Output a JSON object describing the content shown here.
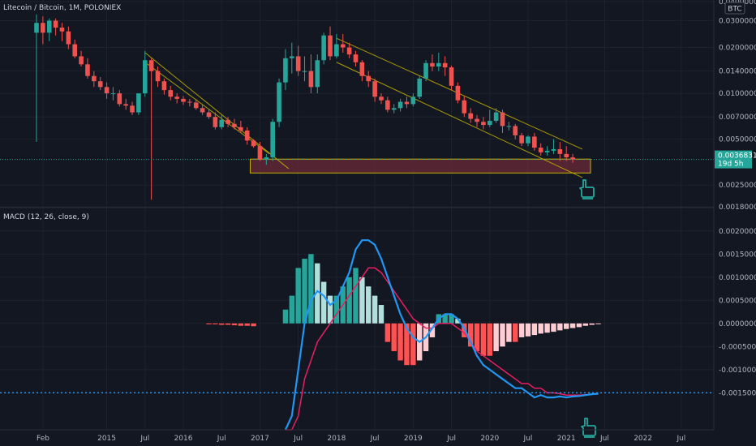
{
  "header": {
    "symbol_title": "Litecoin / Bitcoin, 1M, POLONIEX",
    "currency_badge": "BTC"
  },
  "price_axis": {
    "ticks": [
      "0.04000000",
      "0.03000000",
      "0.02000000",
      "0.01400000",
      "0.01000000",
      "0.00700000",
      "0.00500000",
      "0.00250000",
      "0.00180000"
    ],
    "last_price": "0.00368311",
    "countdown": "19d 5h"
  },
  "macd_panel": {
    "legend": "MACD (12, 26, close, 9)",
    "ticks": [
      "0.00200000",
      "0.00150000",
      "0.00100000",
      "0.00050000",
      "0.00000000",
      "-0.00050000",
      "-0.00100000",
      "-0.00150000"
    ]
  },
  "time_axis": {
    "labels": [
      "Feb",
      "2015",
      "Jul",
      "2016",
      "Jul",
      "2017",
      "Jul",
      "2018",
      "Jul",
      "2019",
      "Jul",
      "2020",
      "Jul",
      "2021",
      "Jul",
      "2022",
      "Jul"
    ]
  },
  "colors": {
    "background": "#131722",
    "bull": "#26a69a",
    "bear": "#ef5350",
    "macd_line": "#2196f3",
    "signal_line": "#e91e63",
    "hist_pos_strong": "#26a69a",
    "hist_pos_weak": "#b2dfdb",
    "hist_neg_strong": "#ff5252",
    "hist_neg_weak": "#ffcdd2",
    "channel": "#c8b400",
    "support_zone": "#6b2a3a",
    "annotation": "#26a69a"
  },
  "chart_data": [
    {
      "type": "candlestick",
      "title": "Litecoin / Bitcoin, 1M, POLONIEX",
      "y_scale": "log",
      "x": [
        "2014-02",
        "2014-03",
        "2014-04",
        "2014-05",
        "2014-06",
        "2014-07",
        "2014-08",
        "2014-09",
        "2014-10",
        "2014-11",
        "2014-12",
        "2015-01",
        "2015-02",
        "2015-03",
        "2015-04",
        "2015-05",
        "2015-06",
        "2015-07",
        "2015-08",
        "2015-09",
        "2015-10",
        "2015-11",
        "2015-12",
        "2016-01",
        "2016-02",
        "2016-03",
        "2016-04",
        "2016-05",
        "2016-06",
        "2016-07",
        "2016-08",
        "2016-09",
        "2016-10",
        "2016-11",
        "2016-12",
        "2017-01",
        "2017-02",
        "2017-03",
        "2017-04",
        "2017-05",
        "2017-06",
        "2017-07",
        "2017-08",
        "2017-09",
        "2017-10",
        "2017-11",
        "2017-12",
        "2018-01",
        "2018-02",
        "2018-03",
        "2018-04",
        "2018-05",
        "2018-06",
        "2018-07",
        "2018-08",
        "2018-09",
        "2018-10",
        "2018-11",
        "2018-12",
        "2019-01",
        "2019-02",
        "2019-03",
        "2019-04",
        "2019-05",
        "2019-06",
        "2019-07",
        "2019-08",
        "2019-09",
        "2019-10",
        "2019-11",
        "2019-12",
        "2020-01",
        "2020-02",
        "2020-03",
        "2020-04",
        "2020-05",
        "2020-06",
        "2020-07",
        "2020-08",
        "2020-09",
        "2020-10",
        "2020-11",
        "2020-12",
        "2021-01",
        "2021-02"
      ],
      "open": [
        0.025,
        0.029,
        0.025,
        0.03,
        0.027,
        0.0255,
        0.021,
        0.0175,
        0.0155,
        0.013,
        0.012,
        0.011,
        0.01,
        0.01,
        0.0085,
        0.0083,
        0.0075,
        0.01,
        0.0165,
        0.014,
        0.012,
        0.0105,
        0.0095,
        0.0092,
        0.0088,
        0.0087,
        0.008,
        0.0075,
        0.007,
        0.006,
        0.0067,
        0.0063,
        0.006,
        0.0057,
        0.0049,
        0.0045,
        0.0037,
        0.0038,
        0.0065,
        0.0118,
        0.017,
        0.0175,
        0.014,
        0.014,
        0.011,
        0.0165,
        0.024,
        0.0175,
        0.021,
        0.02,
        0.018,
        0.016,
        0.013,
        0.012,
        0.0095,
        0.009,
        0.0078,
        0.008,
        0.0088,
        0.0085,
        0.0095,
        0.0125,
        0.0158,
        0.015,
        0.0158,
        0.0148,
        0.0112,
        0.009,
        0.0074,
        0.0068,
        0.0065,
        0.0062,
        0.0066,
        0.0075,
        0.0061,
        0.0061,
        0.0053,
        0.0047,
        0.0052,
        0.0044,
        0.0041,
        0.0042,
        0.0043,
        0.004,
        0.0038
      ],
      "high": [
        0.033,
        0.032,
        0.031,
        0.031,
        0.029,
        0.0275,
        0.0225,
        0.019,
        0.017,
        0.014,
        0.0128,
        0.0118,
        0.011,
        0.0105,
        0.0092,
        0.0088,
        0.0098,
        0.019,
        0.017,
        0.015,
        0.0125,
        0.0112,
        0.01,
        0.0096,
        0.0092,
        0.0092,
        0.0084,
        0.0078,
        0.0075,
        0.0072,
        0.007,
        0.0068,
        0.0066,
        0.006,
        0.005,
        0.0048,
        0.004,
        0.0068,
        0.0125,
        0.0195,
        0.0215,
        0.0205,
        0.0175,
        0.018,
        0.018,
        0.025,
        0.0275,
        0.0245,
        0.0245,
        0.0215,
        0.019,
        0.0165,
        0.014,
        0.0125,
        0.01,
        0.0095,
        0.0085,
        0.0092,
        0.0095,
        0.01,
        0.013,
        0.0165,
        0.018,
        0.0185,
        0.0175,
        0.0152,
        0.0118,
        0.0096,
        0.008,
        0.0072,
        0.007,
        0.0078,
        0.008,
        0.0078,
        0.0065,
        0.0063,
        0.0055,
        0.0053,
        0.0055,
        0.0047,
        0.0045,
        0.005,
        0.0048,
        0.0045,
        0.004
      ],
      "low": [
        0.0048,
        0.021,
        0.022,
        0.024,
        0.022,
        0.0195,
        0.017,
        0.015,
        0.0125,
        0.011,
        0.0105,
        0.0092,
        0.009,
        0.0082,
        0.0078,
        0.0072,
        0.0072,
        0.0095,
        0.002,
        0.011,
        0.0098,
        0.009,
        0.0086,
        0.0084,
        0.0082,
        0.0078,
        0.0072,
        0.0068,
        0.0058,
        0.0058,
        0.006,
        0.0058,
        0.0055,
        0.0046,
        0.0044,
        0.0036,
        0.0034,
        0.0036,
        0.006,
        0.0105,
        0.0135,
        0.013,
        0.012,
        0.01,
        0.01,
        0.0155,
        0.0165,
        0.017,
        0.0185,
        0.017,
        0.015,
        0.012,
        0.011,
        0.0088,
        0.0085,
        0.0075,
        0.0074,
        0.0076,
        0.008,
        0.0082,
        0.0092,
        0.012,
        0.014,
        0.014,
        0.013,
        0.0105,
        0.0086,
        0.007,
        0.0064,
        0.006,
        0.0058,
        0.006,
        0.0064,
        0.0055,
        0.0057,
        0.005,
        0.0045,
        0.0045,
        0.0042,
        0.0039,
        0.0039,
        0.004,
        0.0036,
        0.0036,
        0.0035
      ],
      "close": [
        0.029,
        0.025,
        0.03,
        0.027,
        0.0255,
        0.021,
        0.0175,
        0.0155,
        0.013,
        0.012,
        0.011,
        0.01,
        0.01,
        0.0085,
        0.0083,
        0.0075,
        0.01,
        0.0165,
        0.014,
        0.012,
        0.0105,
        0.0095,
        0.0092,
        0.0088,
        0.0087,
        0.008,
        0.0075,
        0.007,
        0.006,
        0.0067,
        0.0063,
        0.006,
        0.0057,
        0.0049,
        0.0045,
        0.0037,
        0.0038,
        0.0065,
        0.0118,
        0.017,
        0.0175,
        0.014,
        0.014,
        0.011,
        0.0165,
        0.024,
        0.0175,
        0.021,
        0.02,
        0.018,
        0.016,
        0.013,
        0.012,
        0.0095,
        0.009,
        0.0078,
        0.008,
        0.0088,
        0.0085,
        0.0095,
        0.0125,
        0.0158,
        0.015,
        0.0158,
        0.0148,
        0.0112,
        0.009,
        0.0074,
        0.0068,
        0.0065,
        0.0062,
        0.0066,
        0.0075,
        0.0061,
        0.0061,
        0.0053,
        0.0047,
        0.0052,
        0.0044,
        0.0041,
        0.0042,
        0.0043,
        0.004,
        0.0038,
        0.00368311
      ],
      "support_zone": [
        0.003,
        0.0037
      ],
      "channels": [
        {
          "start": [
            "2015-07",
            0.0185
          ],
          "end": [
            "2017-05",
            0.0032
          ]
        },
        {
          "start": [
            "2015-07",
            0.016
          ],
          "end": [
            "2017-02",
            0.004
          ]
        },
        {
          "start": [
            "2018-01",
            0.023
          ],
          "end": [
            "2021-03",
            0.0043
          ]
        },
        {
          "start": [
            "2018-01",
            0.016
          ],
          "end": [
            "2021-03",
            0.0028
          ]
        }
      ],
      "ylim": [
        0.0018,
        0.04
      ]
    },
    {
      "type": "macd",
      "title": "MACD (12, 26, close, 9)",
      "x": [
        "2017-01",
        "2017-02",
        "2017-03",
        "2017-04",
        "2017-05",
        "2017-06",
        "2017-07",
        "2017-08",
        "2017-09",
        "2017-10",
        "2017-11",
        "2017-12",
        "2018-01",
        "2018-02",
        "2018-03",
        "2018-04",
        "2018-05",
        "2018-06",
        "2018-07",
        "2018-08",
        "2018-09",
        "2018-10",
        "2018-11",
        "2018-12",
        "2019-01",
        "2019-02",
        "2019-03",
        "2019-04",
        "2019-05",
        "2019-06",
        "2019-07",
        "2019-08",
        "2019-09",
        "2019-10",
        "2019-11",
        "2019-12",
        "2020-01",
        "2020-02",
        "2020-03",
        "2020-04",
        "2020-05",
        "2020-06",
        "2020-07",
        "2020-08",
        "2020-09",
        "2020-10",
        "2020-11",
        "2020-12",
        "2021-01",
        "2021-02"
      ],
      "macd": [
        -0.0025,
        -0.002,
        -0.001,
        0.0,
        0.0005,
        0.0007,
        0.0006,
        0.0004,
        0.0005,
        0.0008,
        0.0011,
        0.0016,
        0.0018,
        0.0018,
        0.0017,
        0.0014,
        0.001,
        0.0006,
        0.0002,
        -0.0001,
        -0.0003,
        -0.0004,
        -0.0003,
        -0.0001,
        0.0001,
        0.0002,
        0.0002,
        0.0001,
        -0.0001,
        -0.0004,
        -0.0007,
        -0.0009,
        -0.001,
        -0.0011,
        -0.0012,
        -0.0013,
        -0.0014,
        -0.0014,
        -0.0015,
        -0.0016,
        -0.00155,
        -0.0016,
        -0.0016,
        -0.00158,
        -0.0016,
        -0.00158,
        -0.00157,
        -0.00155,
        -0.00153,
        -0.00152
      ],
      "signal": [
        -0.003,
        -0.0027,
        -0.002,
        -0.0012,
        -0.0008,
        -0.0004,
        -0.0002,
        0.0,
        0.0002,
        0.0004,
        0.0006,
        0.0008,
        0.001,
        0.0012,
        0.0012,
        0.0011,
        0.0009,
        0.0007,
        0.0005,
        0.0003,
        0.0001,
        0.0,
        -0.0001,
        -0.0001,
        0.0,
        0.0,
        0.0,
        -0.0001,
        -0.0002,
        -0.0004,
        -0.0006,
        -0.0007,
        -0.0008,
        -0.0009,
        -0.001,
        -0.0011,
        -0.0012,
        -0.0013,
        -0.0013,
        -0.0014,
        -0.0014,
        -0.0015,
        -0.0015,
        -0.00152,
        -0.00155,
        -0.00155,
        -0.00155,
        -0.00154,
        -0.00153,
        -0.00152
      ],
      "histogram_prefix": [
        -2e-05,
        -2e-05,
        -3e-05,
        -3e-05,
        -4e-05,
        -5e-05,
        -5e-05,
        -6e-05
      ],
      "histogram": [
        0.0003,
        0.0006,
        0.0012,
        0.0014,
        0.0015,
        0.0013,
        0.0009,
        0.0006,
        0.0006,
        0.0008,
        0.001,
        0.0012,
        0.001,
        0.0008,
        0.0006,
        0.0004,
        -0.0004,
        -0.0006,
        -0.0008,
        -0.0009,
        -0.0009,
        -0.0008,
        -0.0006,
        -0.0003,
        0.0002,
        0.0002,
        0.0002,
        0.0001,
        -0.0003,
        -0.0005,
        -0.0006,
        -0.0007,
        -0.0007,
        -0.0006,
        -0.0005,
        -0.0004,
        -0.0004,
        -0.0003,
        -0.00028,
        -0.00025,
        -0.00022,
        -0.0002,
        -0.00018,
        -0.00015,
        -0.00012,
        -0.0001,
        -8e-05,
        -5e-05,
        -3e-05,
        -1e-05
      ],
      "histogram_offset": 4,
      "ylim": [
        -0.0023,
        0.0024
      ],
      "threshold": -0.0015
    }
  ]
}
